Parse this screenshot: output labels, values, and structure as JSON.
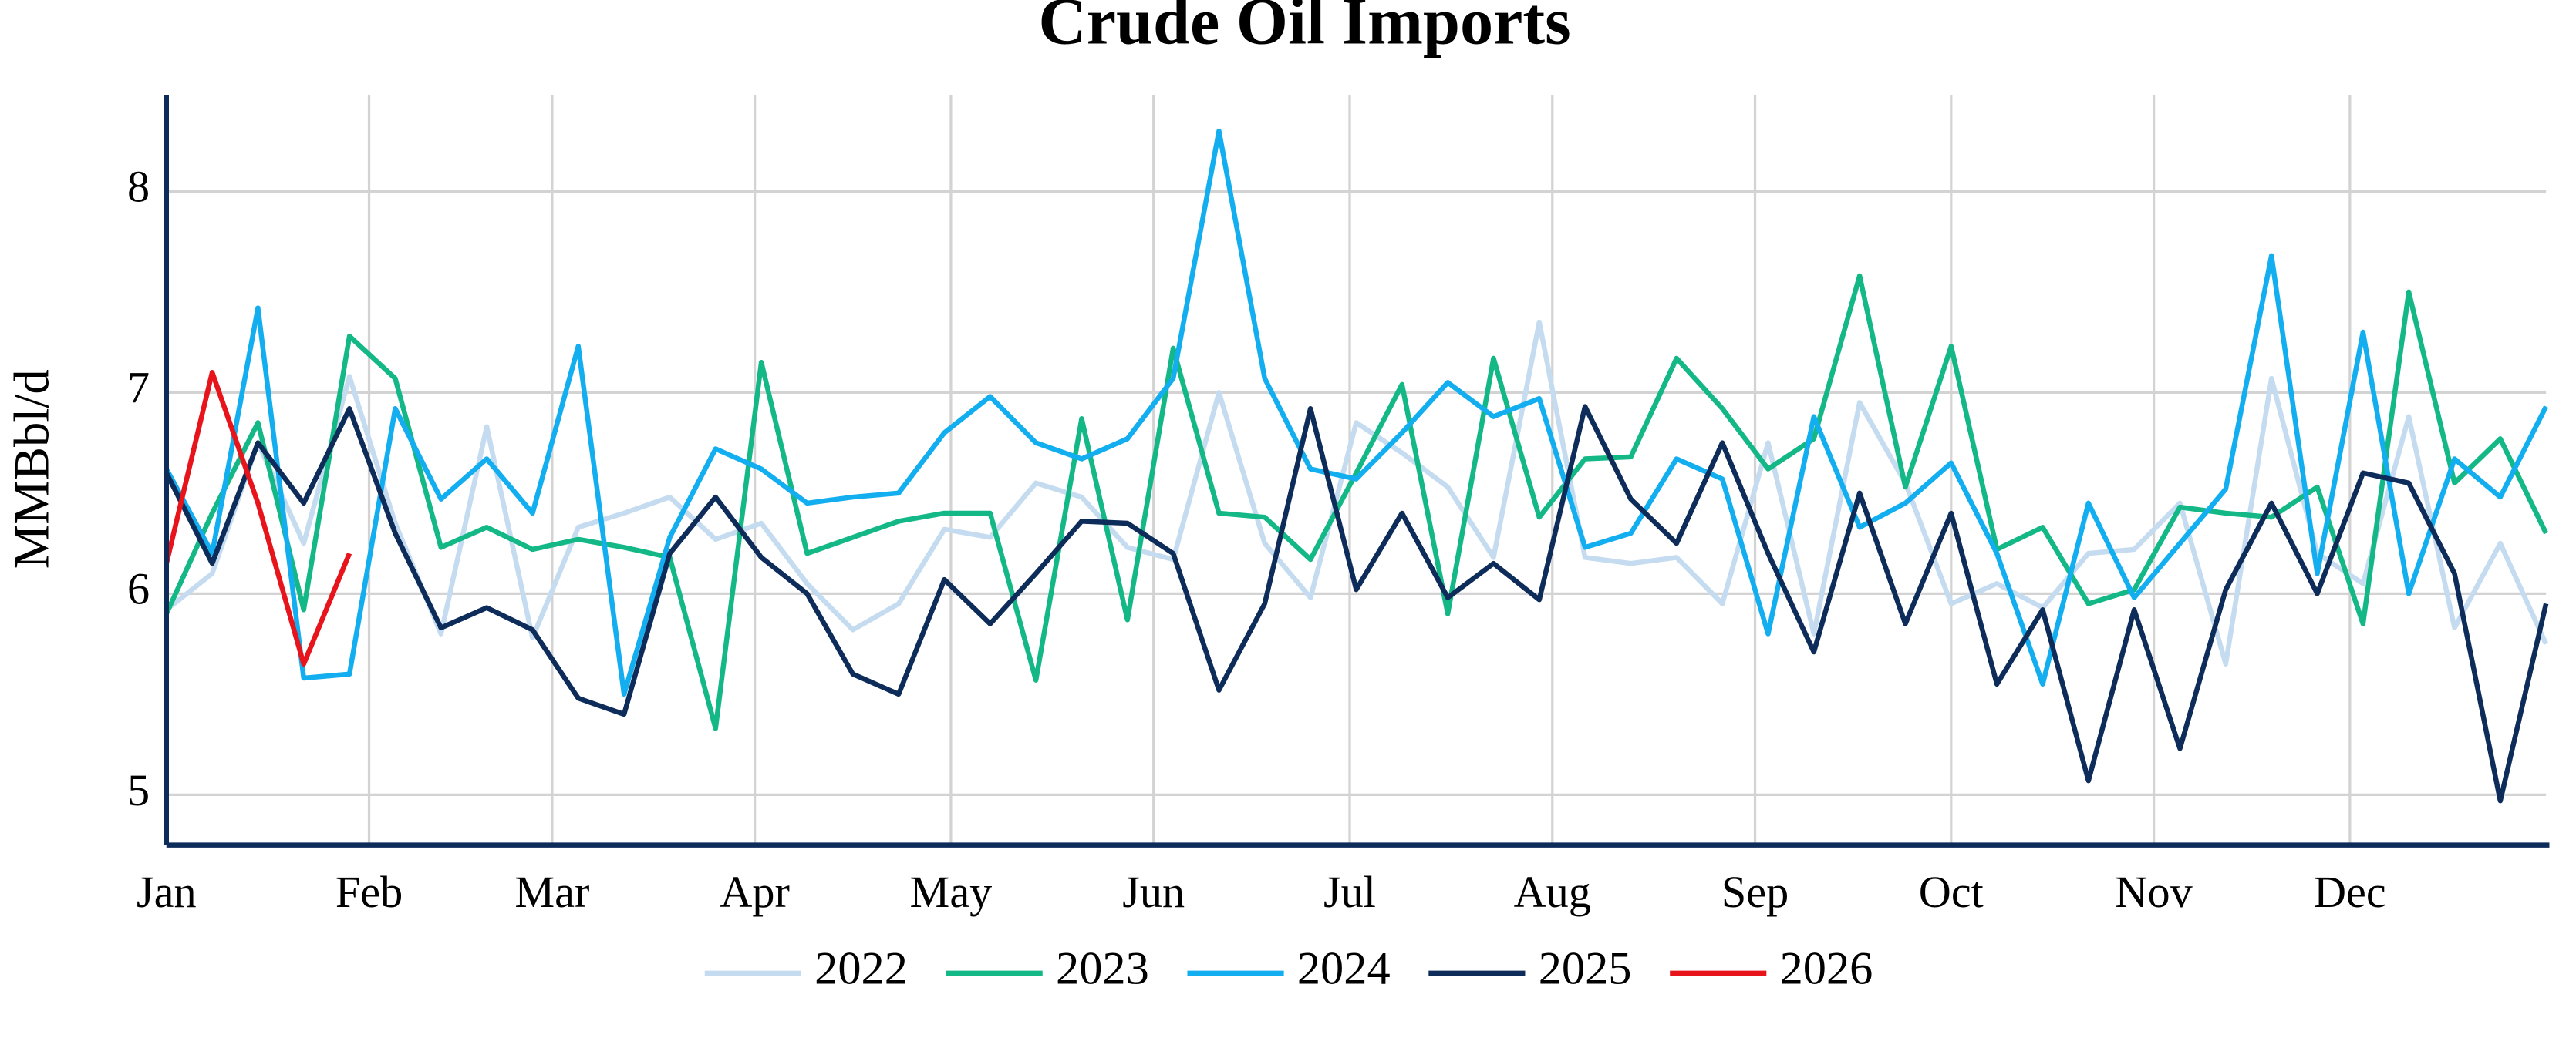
{
  "chart_data": {
    "type": "line",
    "title": "Crude Oil Imports",
    "y_label": "MMBbl/d",
    "x": [
      1,
      8,
      15,
      22,
      29,
      36,
      43,
      50,
      57,
      64,
      71,
      78,
      85,
      92,
      99,
      106,
      113,
      120,
      127,
      134,
      141,
      148,
      155,
      162,
      169,
      176,
      183,
      190,
      197,
      204,
      211,
      218,
      225,
      232,
      239,
      246,
      253,
      260,
      267,
      274,
      281,
      288,
      295,
      302,
      309,
      316,
      323,
      330,
      337,
      344,
      351,
      358,
      365
    ],
    "xlim": [
      1,
      365
    ],
    "xticks": [
      {
        "value": 1,
        "label": "Jan"
      },
      {
        "value": 32,
        "label": "Feb"
      },
      {
        "value": 60,
        "label": "Mar"
      },
      {
        "value": 91,
        "label": "Apr"
      },
      {
        "value": 121,
        "label": "May"
      },
      {
        "value": 152,
        "label": "Jun"
      },
      {
        "value": 182,
        "label": "Jul"
      },
      {
        "value": 213,
        "label": "Aug"
      },
      {
        "value": 244,
        "label": "Sep"
      },
      {
        "value": 274,
        "label": "Oct"
      },
      {
        "value": 305,
        "label": "Nov"
      },
      {
        "value": 335,
        "label": "Dec"
      }
    ],
    "ylim": [
      4.75,
      8.48
    ],
    "yticks": [
      5,
      6,
      7,
      8
    ],
    "grid": true,
    "legend": "bottom",
    "series": [
      {
        "name": "2022",
        "color": "#c5dcf0",
        "values": [
          5.92,
          6.1,
          6.75,
          6.25,
          7.08,
          6.35,
          5.8,
          6.83,
          5.78,
          6.33,
          6.4,
          6.48,
          6.27,
          6.35,
          6.05,
          5.82,
          5.95,
          6.32,
          6.28,
          6.55,
          6.48,
          6.23,
          6.17,
          7.0,
          6.25,
          5.98,
          6.85,
          6.7,
          6.53,
          6.18,
          7.35,
          6.18,
          6.15,
          6.18,
          5.95,
          6.75,
          5.8,
          6.95,
          6.55,
          5.95,
          6.05,
          5.93,
          6.2,
          6.22,
          6.45,
          5.65,
          7.07,
          6.2,
          6.05,
          6.88,
          5.83,
          6.25,
          5.75
        ]
      },
      {
        "name": "2023",
        "color": "#13b886",
        "values": [
          5.9,
          6.4,
          6.85,
          5.92,
          7.28,
          7.07,
          6.23,
          6.33,
          6.22,
          6.27,
          6.23,
          6.18,
          5.33,
          7.15,
          6.2,
          6.28,
          6.36,
          6.4,
          6.4,
          5.57,
          6.87,
          5.87,
          7.22,
          6.4,
          6.38,
          6.17,
          6.6,
          7.04,
          5.9,
          7.17,
          6.38,
          6.67,
          6.68,
          7.17,
          6.92,
          6.62,
          6.77,
          7.58,
          6.53,
          7.23,
          6.22,
          6.33,
          5.95,
          6.02,
          6.43,
          6.4,
          6.38,
          6.53,
          5.85,
          7.5,
          6.55,
          6.77,
          6.3
        ]
      },
      {
        "name": "2024",
        "color": "#12aef0",
        "values": [
          6.62,
          6.2,
          7.42,
          5.58,
          5.6,
          6.92,
          6.47,
          6.67,
          6.4,
          7.23,
          5.5,
          6.28,
          6.72,
          6.62,
          6.45,
          6.48,
          6.5,
          6.8,
          6.98,
          6.75,
          6.67,
          6.77,
          7.07,
          8.3,
          7.07,
          6.62,
          6.57,
          6.8,
          7.05,
          6.88,
          6.97,
          6.23,
          6.3,
          6.67,
          6.57,
          5.8,
          6.88,
          6.33,
          6.45,
          6.65,
          6.2,
          5.55,
          6.45,
          5.98,
          6.25,
          6.52,
          7.68,
          6.1,
          7.3,
          6.0,
          6.67,
          6.48,
          6.93
        ]
      },
      {
        "name": "2025",
        "color": "#0d2c5a",
        "values": [
          6.6,
          6.15,
          6.75,
          6.45,
          6.92,
          6.3,
          5.83,
          5.93,
          5.82,
          5.48,
          5.4,
          6.2,
          6.48,
          6.18,
          6.0,
          5.6,
          5.5,
          6.07,
          5.85,
          6.1,
          6.36,
          6.35,
          6.2,
          5.52,
          5.95,
          6.92,
          6.02,
          6.4,
          5.98,
          6.15,
          5.97,
          6.93,
          6.47,
          6.25,
          6.75,
          6.2,
          5.71,
          6.5,
          5.85,
          6.4,
          5.55,
          5.92,
          5.07,
          5.92,
          5.23,
          6.02,
          6.45,
          6.0,
          6.6,
          6.55,
          6.1,
          4.97,
          5.95
        ]
      },
      {
        "name": "2026",
        "color": "#e8141b",
        "values": [
          6.15,
          7.1,
          6.45,
          5.65,
          6.2,
          null,
          null,
          null,
          null,
          null,
          null,
          null,
          null,
          null,
          null,
          null,
          null,
          null,
          null,
          null,
          null,
          null,
          null,
          null,
          null,
          null,
          null,
          null,
          null,
          null,
          null,
          null,
          null,
          null,
          null,
          null,
          null,
          null,
          null,
          null,
          null,
          null,
          null,
          null,
          null,
          null,
          null,
          null,
          null,
          null,
          null,
          null,
          null
        ]
      }
    ]
  }
}
